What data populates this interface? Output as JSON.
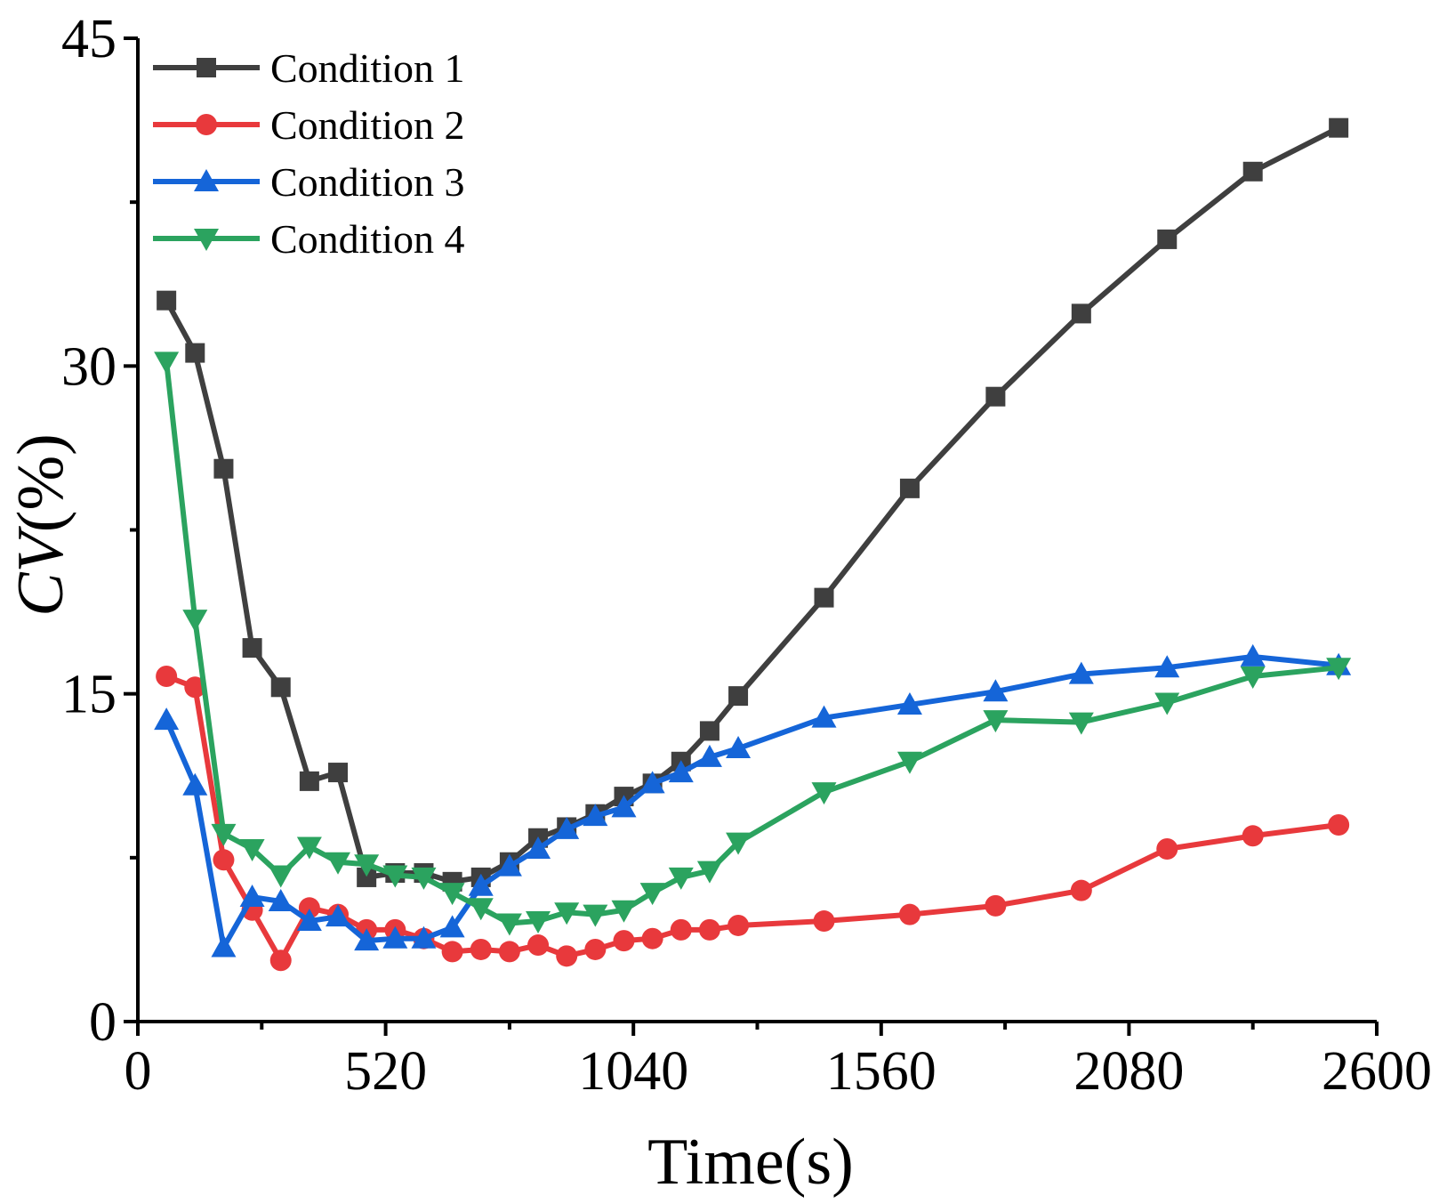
{
  "chart_data": {
    "type": "line",
    "title": "",
    "xlabel": "Time(s)",
    "ylabel_italic": "CV",
    "ylabel_suffix": "(%)",
    "xlim": [
      0,
      2600
    ],
    "ylim": [
      0,
      45
    ],
    "x_ticks": [
      0,
      520,
      1040,
      1560,
      2080,
      2600
    ],
    "y_ticks": [
      0,
      15,
      30,
      45
    ],
    "grid": false,
    "legend_position": "top-left",
    "series": [
      {
        "name": "Condition 1",
        "color": "#3f3f3f",
        "marker": "square",
        "x": [
          60,
          120,
          180,
          240,
          300,
          360,
          420,
          480,
          540,
          600,
          660,
          720,
          780,
          840,
          900,
          960,
          1020,
          1080,
          1140,
          1200,
          1260,
          1440,
          1620,
          1800,
          1980,
          2160,
          2340,
          2520
        ],
        "y": [
          33.0,
          30.6,
          25.3,
          17.1,
          15.3,
          11.0,
          11.4,
          6.6,
          6.8,
          6.8,
          6.4,
          6.6,
          7.3,
          8.4,
          8.9,
          9.5,
          10.3,
          10.9,
          11.9,
          13.3,
          14.9,
          19.4,
          24.4,
          28.6,
          32.4,
          35.8,
          38.9,
          40.9
        ]
      },
      {
        "name": "Condition 2",
        "color": "#e8393c",
        "marker": "circle",
        "x": [
          60,
          120,
          180,
          240,
          300,
          360,
          420,
          480,
          540,
          600,
          660,
          720,
          780,
          840,
          900,
          960,
          1020,
          1080,
          1140,
          1200,
          1260,
          1440,
          1620,
          1800,
          1980,
          2160,
          2340,
          2520
        ],
        "y": [
          15.8,
          15.3,
          7.4,
          5.1,
          2.8,
          5.2,
          4.9,
          4.2,
          4.2,
          3.8,
          3.2,
          3.3,
          3.2,
          3.5,
          3.0,
          3.3,
          3.7,
          3.8,
          4.2,
          4.2,
          4.4,
          4.6,
          4.9,
          5.3,
          6.0,
          7.9,
          8.5,
          9.0
        ]
      },
      {
        "name": "Condition 3",
        "color": "#1565d8",
        "marker": "triangle-up",
        "x": [
          60,
          120,
          180,
          240,
          300,
          360,
          420,
          480,
          540,
          600,
          660,
          720,
          780,
          840,
          900,
          960,
          1020,
          1080,
          1140,
          1200,
          1260,
          1440,
          1620,
          1800,
          1980,
          2160,
          2340,
          2520
        ],
        "y": [
          13.8,
          10.8,
          3.4,
          5.7,
          5.5,
          4.6,
          4.8,
          3.7,
          3.8,
          3.8,
          4.3,
          6.2,
          7.1,
          7.9,
          8.8,
          9.4,
          9.8,
          10.9,
          11.4,
          12.1,
          12.5,
          13.9,
          14.5,
          15.1,
          15.9,
          16.2,
          16.7,
          16.3
        ]
      },
      {
        "name": "Condition 4",
        "color": "#2ba35f",
        "marker": "triangle-down",
        "x": [
          60,
          120,
          180,
          240,
          300,
          360,
          420,
          480,
          540,
          600,
          660,
          720,
          780,
          840,
          900,
          960,
          1020,
          1080,
          1140,
          1200,
          1260,
          1440,
          1620,
          1800,
          1980,
          2160,
          2340,
          2520
        ],
        "y": [
          30.2,
          18.4,
          8.6,
          7.9,
          6.7,
          8.0,
          7.3,
          7.2,
          6.7,
          6.6,
          5.9,
          5.2,
          4.5,
          4.6,
          5.0,
          4.9,
          5.1,
          5.9,
          6.6,
          6.9,
          8.2,
          10.5,
          11.9,
          13.8,
          13.7,
          14.6,
          15.8,
          16.2
        ]
      }
    ]
  }
}
